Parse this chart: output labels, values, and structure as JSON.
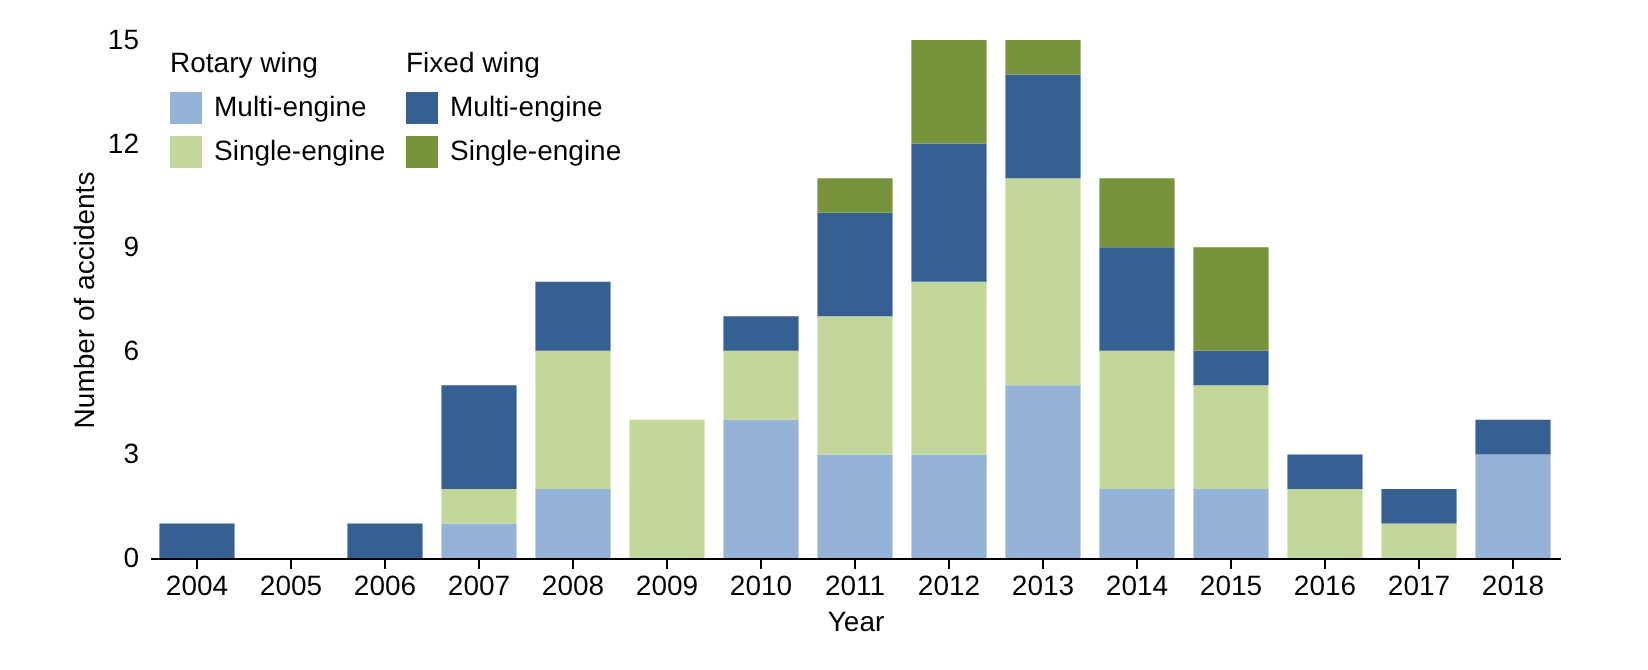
{
  "chart_data": {
    "type": "bar",
    "stacked": true,
    "xlabel": "Year",
    "ylabel": "Number of accidents",
    "categories": [
      "2004",
      "2005",
      "2006",
      "2007",
      "2008",
      "2009",
      "2010",
      "2011",
      "2012",
      "2013",
      "2014",
      "2015",
      "2016",
      "2017",
      "2018"
    ],
    "series": [
      {
        "name": "Multi-engine",
        "color": "#95b3d7",
        "values": [
          0,
          0,
          0,
          1,
          2,
          0,
          4,
          3,
          3,
          5,
          2,
          2,
          0,
          0,
          3
        ]
      },
      {
        "name": "Single-engine",
        "color": "#c4d79b",
        "values": [
          0,
          0,
          0,
          1,
          4,
          4,
          2,
          4,
          5,
          6,
          4,
          3,
          2,
          1,
          0
        ]
      },
      {
        "name": "Multi-engine",
        "color": "#366092",
        "values": [
          1,
          0,
          1,
          3,
          2,
          0,
          1,
          3,
          4,
          3,
          3,
          1,
          1,
          1,
          1
        ]
      },
      {
        "name": "Single-engine",
        "color": "#77933c",
        "values": [
          0,
          0,
          0,
          0,
          0,
          0,
          0,
          1,
          3,
          1,
          2,
          3,
          0,
          0,
          0
        ]
      }
    ],
    "annotations": [
      "Rotary wing",
      "Fixed wing"
    ],
    "legend": "top left",
    "ylim": [
      0,
      15
    ],
    "yticks": [
      0,
      3,
      6,
      9,
      12,
      15
    ]
  }
}
